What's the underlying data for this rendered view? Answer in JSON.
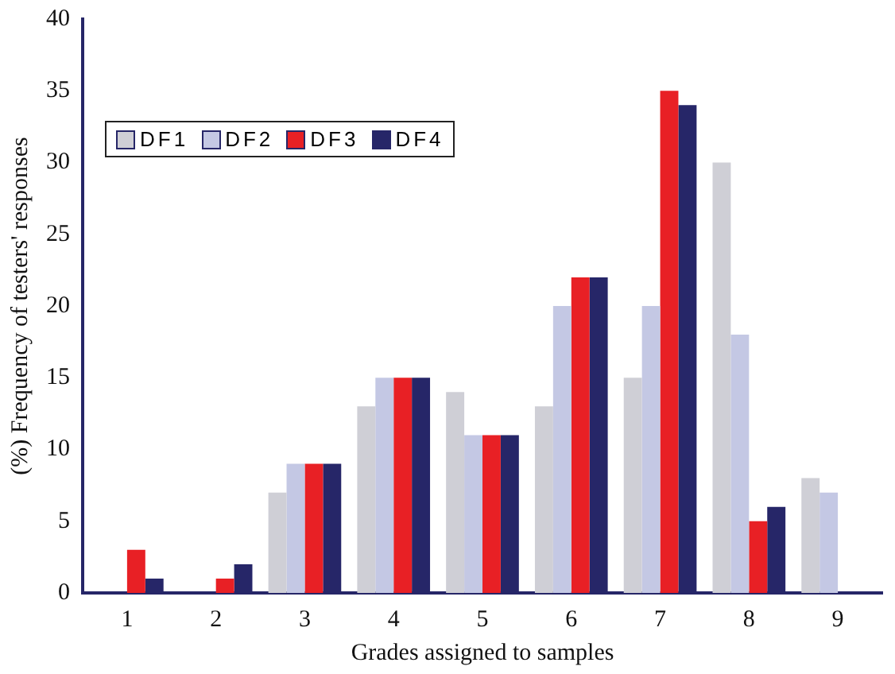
{
  "chart_data": {
    "type": "bar",
    "xlabel": "Grades assigned to samples",
    "ylabel": "(%) Frequency of testers' responses",
    "categories": [
      "1",
      "2",
      "3",
      "4",
      "5",
      "6",
      "7",
      "8",
      "9"
    ],
    "series": [
      {
        "name": "DF1",
        "color": "#cfcfd6",
        "values": [
          0,
          0,
          7,
          13,
          14,
          13,
          15,
          30,
          8
        ]
      },
      {
        "name": "DF2",
        "color": "#c4c8e4",
        "values": [
          0,
          0,
          9,
          15,
          11,
          20,
          20,
          18,
          7
        ]
      },
      {
        "name": "DF3",
        "color": "#e82025",
        "values": [
          3,
          1,
          9,
          15,
          11,
          22,
          35,
          5,
          0
        ]
      },
      {
        "name": "DF4",
        "color": "#262668",
        "values": [
          1,
          2,
          9,
          15,
          11,
          22,
          34,
          6,
          0
        ]
      }
    ],
    "ylim": [
      0,
      40
    ],
    "yticks": [
      0,
      5,
      10,
      15,
      20,
      25,
      30,
      35,
      40
    ],
    "grid": false,
    "legend": "top left"
  }
}
